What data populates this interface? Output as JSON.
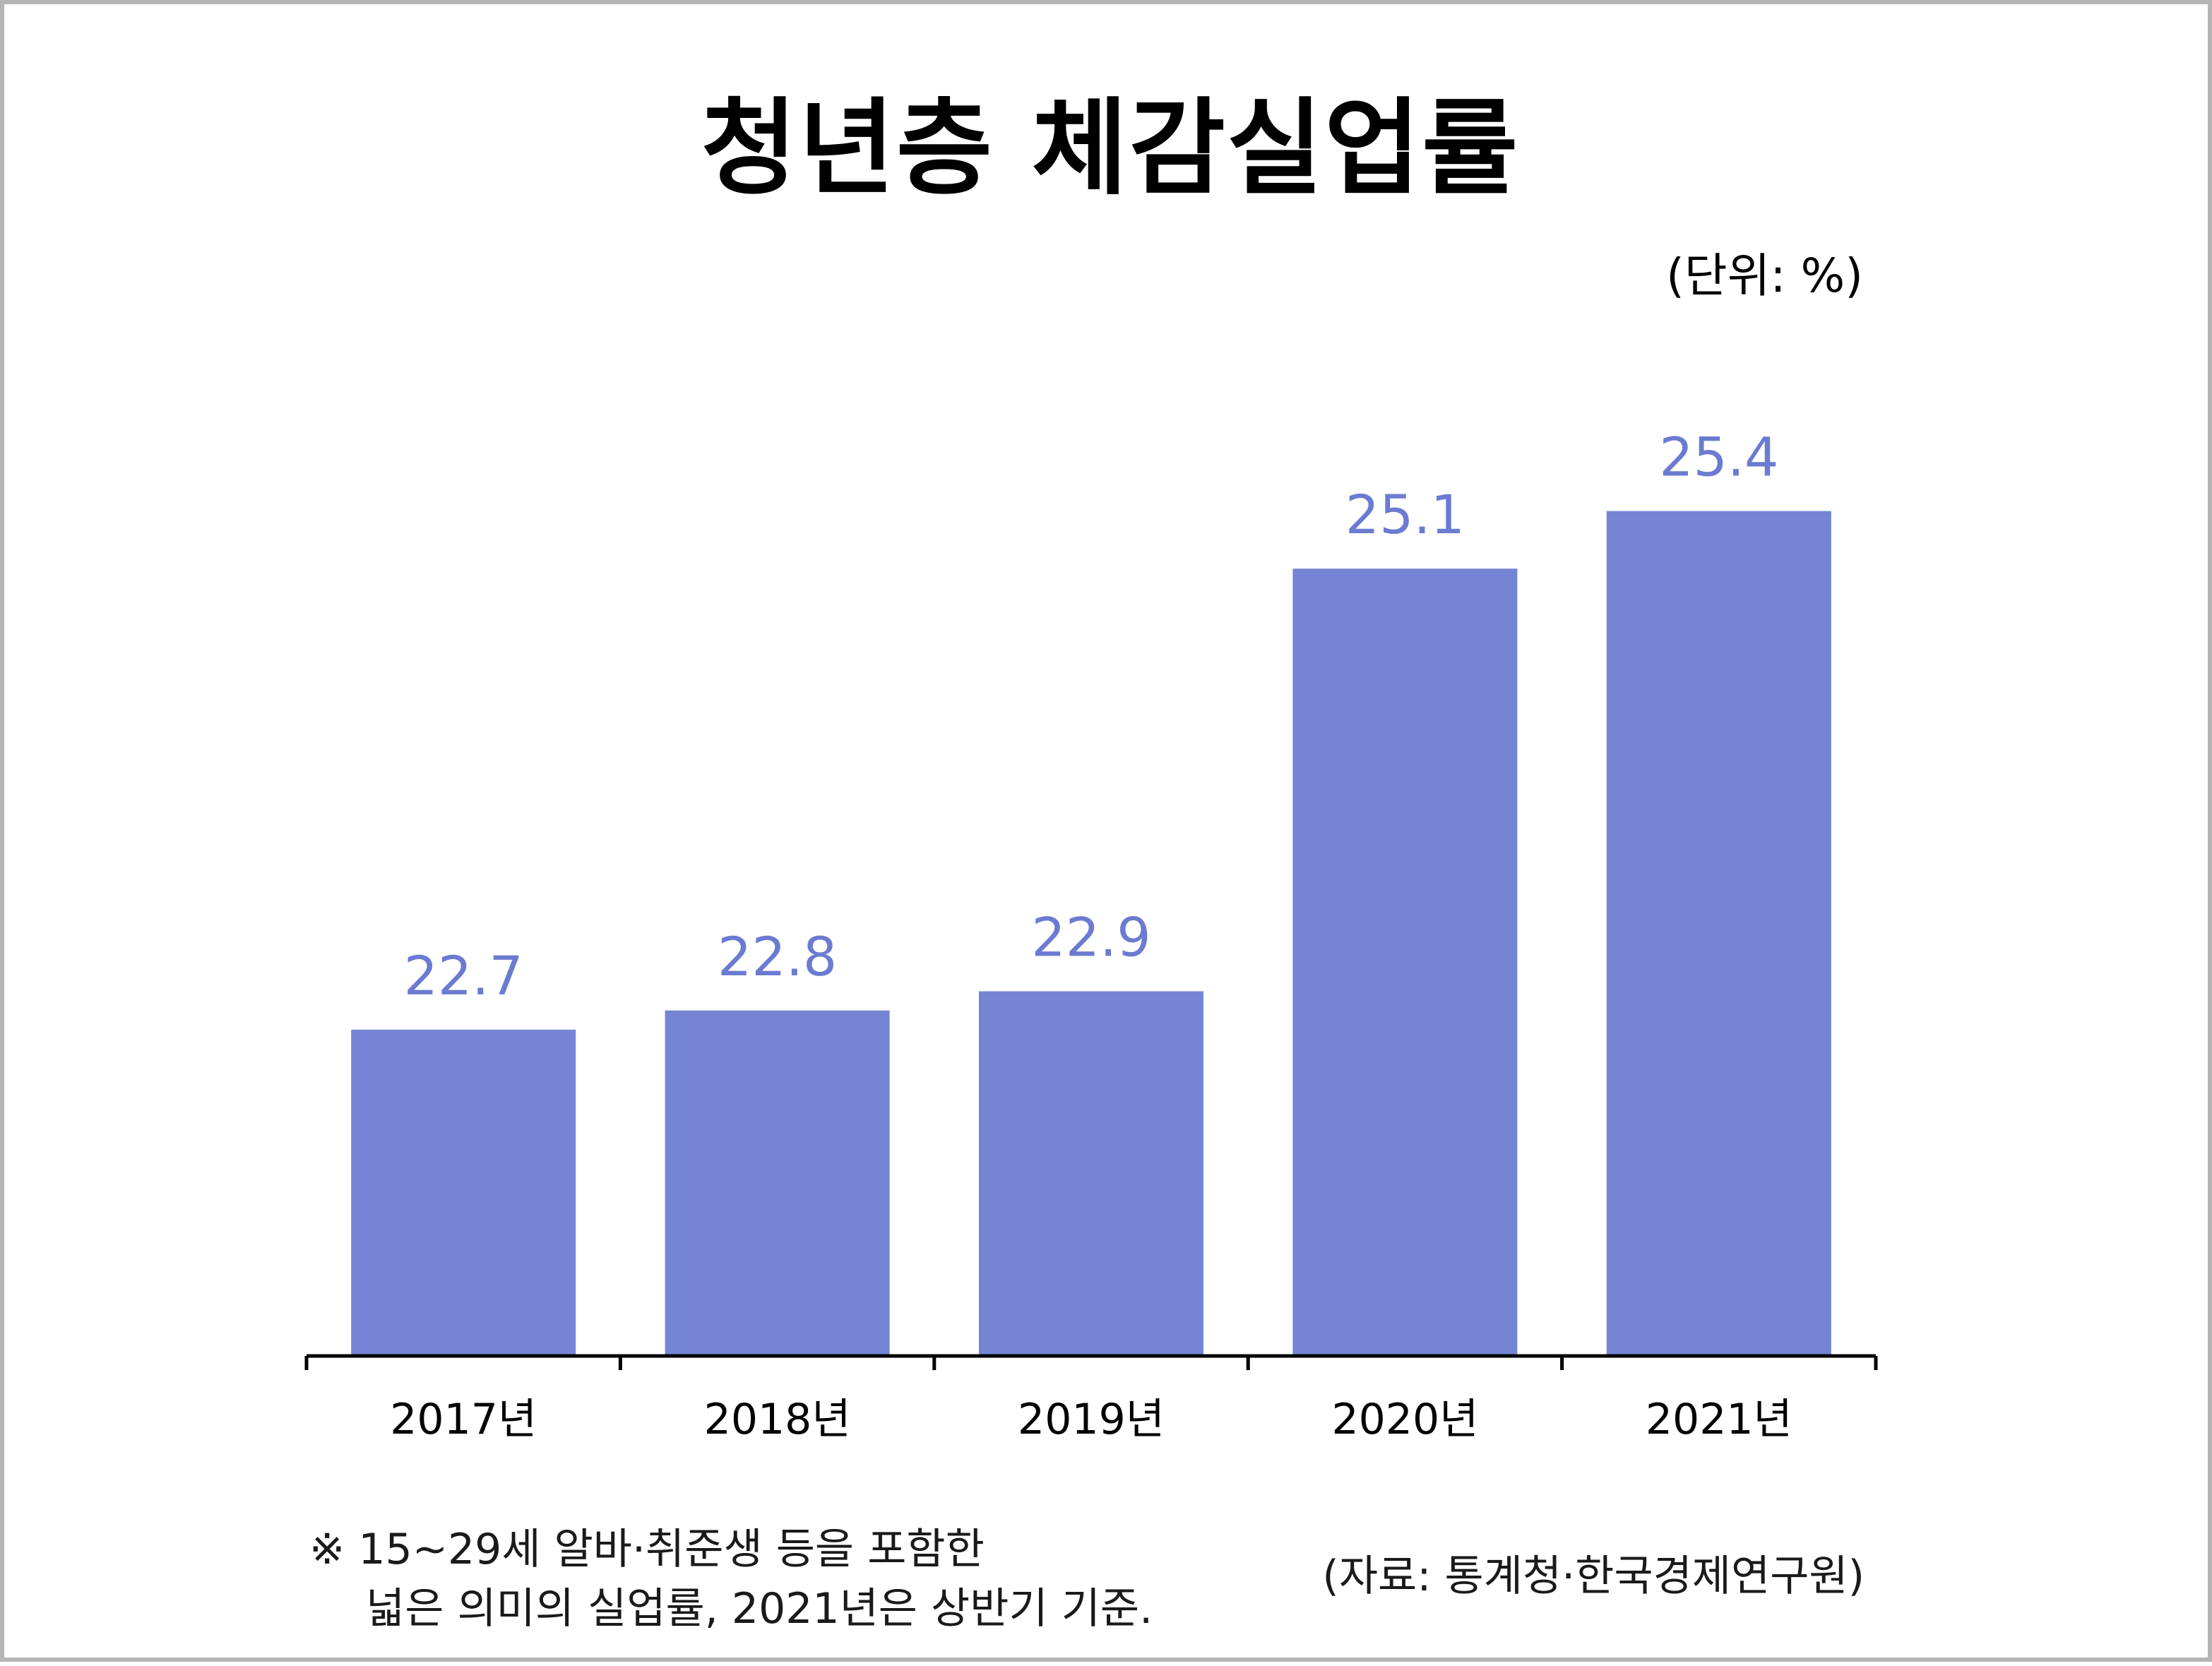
{
  "chart_data": {
    "type": "bar",
    "title": "청년층 체감실업률",
    "unit_label": "(단위: %)",
    "categories": [
      "2017년",
      "2018년",
      "2019년",
      "2020년",
      "2021년"
    ],
    "series": [
      {
        "values": [
          22.7,
          22.8,
          22.9,
          25.1,
          25.4
        ],
        "value_labels": [
          "22.7",
          "22.8",
          "22.9",
          "25.1",
          "25.4"
        ],
        "color": "#7585d4"
      }
    ],
    "label_color": "#6b7bd1",
    "axis_color": "#000000",
    "grid": false,
    "legend": "none"
  },
  "footnote": {
    "line1": "※ 15~29세 알바·취준생 등을 포함한",
    "line2": "넓은 의미의 실업률, 2021년은 상반기 기준."
  },
  "source": "(자료: 통계청·한국경제연구원)"
}
